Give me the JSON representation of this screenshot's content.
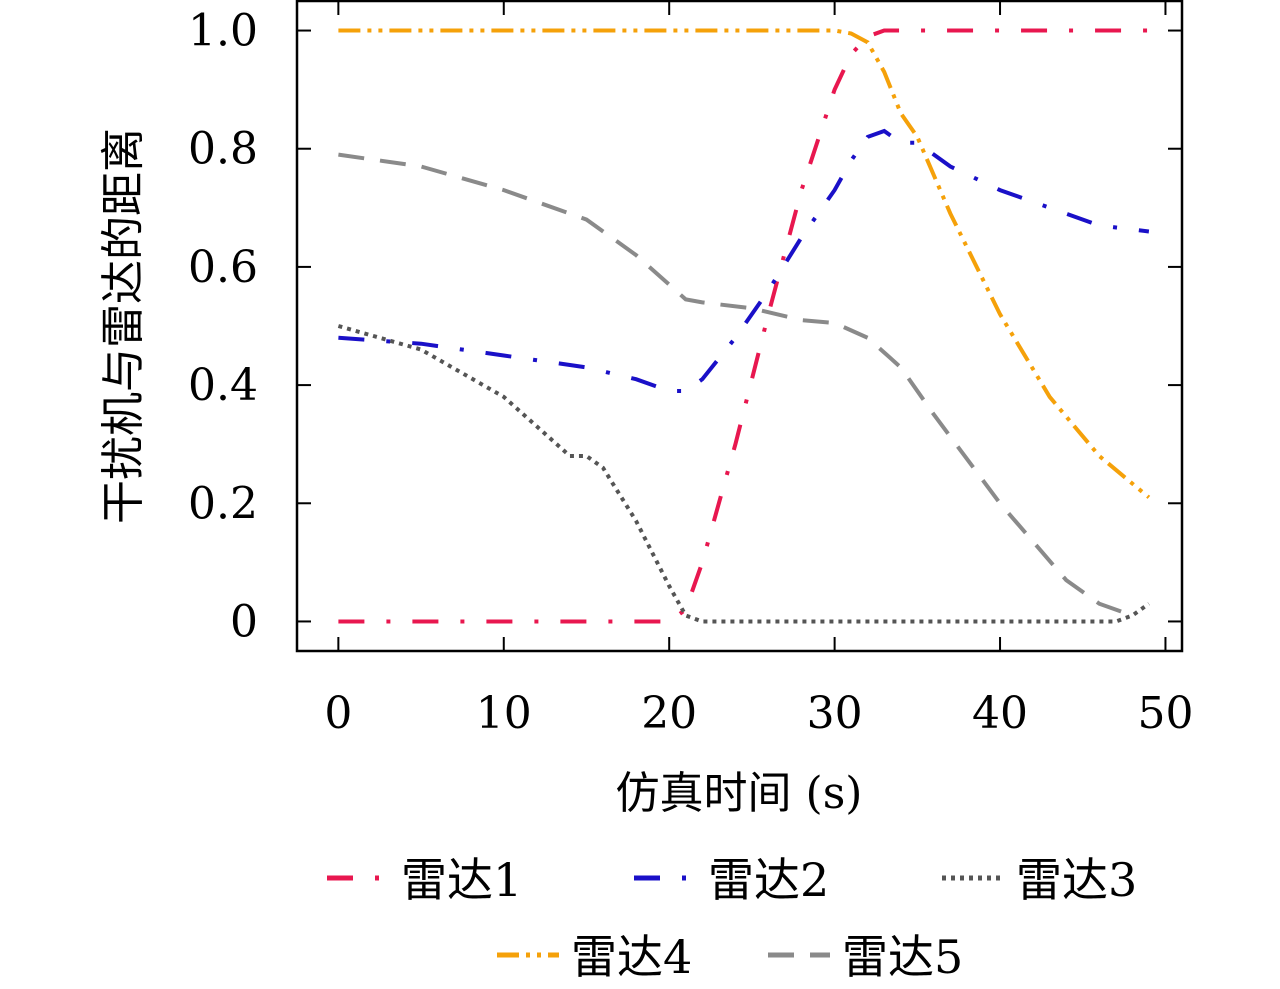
{
  "chart_data": {
    "type": "line",
    "xlabel": "仿真时间 (s)",
    "ylabel": "干扰机与雷达的距离",
    "xlim": [
      -2.5,
      51
    ],
    "ylim": [
      -0.05,
      1.05
    ],
    "xticks": [
      0,
      10,
      20,
      30,
      40,
      50
    ],
    "xtick_labels": [
      "0",
      "10",
      "20",
      "30",
      "40",
      "50"
    ],
    "yticks": [
      0,
      0.2,
      0.4,
      0.6,
      0.8,
      1.0
    ],
    "ytick_labels": [
      "0",
      "0.2",
      "0.4",
      "0.6",
      "0.8",
      "1.0"
    ],
    "grid": false,
    "legend_position": "bottom",
    "series": [
      {
        "name": "雷达1",
        "color": "#e8174f",
        "style": "dash-dot",
        "x": [
          0,
          5,
          10,
          15,
          20,
          21,
          22,
          24,
          26,
          28,
          30,
          31,
          32,
          33,
          35,
          40,
          45,
          49
        ],
        "y": [
          0,
          0,
          0,
          0,
          0,
          0.02,
          0.1,
          0.3,
          0.52,
          0.73,
          0.9,
          0.96,
          0.99,
          1.0,
          1.0,
          1.0,
          1.0,
          1.0
        ]
      },
      {
        "name": "雷达2",
        "color": "#1a10c8",
        "style": "dash-dot",
        "x": [
          0,
          5,
          10,
          15,
          18,
          20,
          21,
          22,
          24,
          26,
          28,
          30,
          31,
          32,
          33,
          34,
          35,
          37,
          40,
          43,
          46,
          49
        ],
        "y": [
          0.48,
          0.47,
          0.45,
          0.43,
          0.41,
          0.39,
          0.39,
          0.41,
          0.48,
          0.56,
          0.65,
          0.73,
          0.78,
          0.82,
          0.83,
          0.81,
          0.81,
          0.77,
          0.73,
          0.7,
          0.67,
          0.66
        ]
      },
      {
        "name": "雷达3",
        "color": "#555555",
        "style": "dotted",
        "x": [
          0,
          5,
          10,
          14,
          15,
          16,
          18,
          20,
          21,
          22,
          25,
          30,
          35,
          40,
          45,
          47,
          48,
          49
        ],
        "y": [
          0.5,
          0.46,
          0.38,
          0.28,
          0.28,
          0.26,
          0.17,
          0.06,
          0.01,
          0,
          0,
          0,
          0,
          0,
          0,
          0,
          0.01,
          0.03
        ]
      },
      {
        "name": "雷达4",
        "color": "#f5a10a",
        "style": "dash-dot-dot",
        "x": [
          0,
          10,
          20,
          30,
          31,
          32,
          33,
          34,
          35,
          37,
          40,
          43,
          46,
          49
        ],
        "y": [
          1.0,
          1.0,
          1.0,
          1.0,
          0.995,
          0.98,
          0.93,
          0.86,
          0.82,
          0.69,
          0.52,
          0.38,
          0.28,
          0.21
        ]
      },
      {
        "name": "雷达5",
        "color": "#8a8a8a",
        "style": "dashed",
        "x": [
          0,
          5,
          10,
          15,
          18,
          20,
          21,
          22,
          25,
          28,
          30,
          32,
          34,
          36,
          40,
          44,
          46,
          48
        ],
        "y": [
          0.79,
          0.77,
          0.73,
          0.68,
          0.62,
          0.57,
          0.545,
          0.54,
          0.53,
          0.51,
          0.505,
          0.48,
          0.43,
          0.35,
          0.2,
          0.07,
          0.03,
          0.01
        ]
      }
    ]
  }
}
